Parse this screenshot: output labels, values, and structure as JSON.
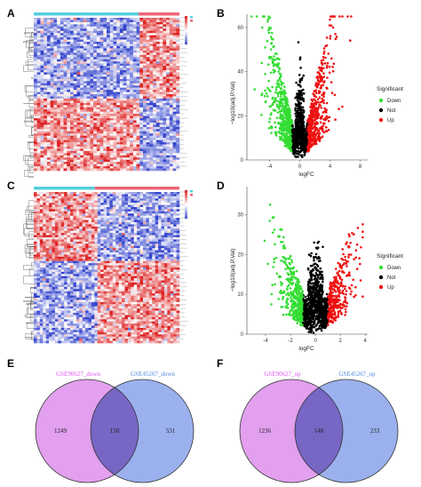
{
  "panels": {
    "A": "A",
    "B": "B",
    "C": "C",
    "D": "D",
    "E": "E",
    "F": "F"
  },
  "colors": {
    "down": "#33dd33",
    "not": "#000000",
    "up": "#ee1111",
    "heat_low": "#3344cc",
    "heat_mid": "#ffffff",
    "heat_high": "#dd2222",
    "venn_left": "#e2a0ee",
    "venn_right": "#9bb1ee",
    "venn_overlap": "#7766c4",
    "label_left": "#dd55ee",
    "label_right": "#5588dd",
    "group_bar_1": "#55cfe0",
    "group_bar_2": "#ee6677"
  },
  "chart_data": [
    {
      "id": "B",
      "type": "scatter",
      "xlabel": "logFC",
      "ylabel": "−log10(adj.P.Val)",
      "xticks": [
        -4,
        0,
        4,
        8
      ],
      "yticks": [
        0,
        20,
        40,
        60
      ],
      "xlim": [
        -7,
        9
      ],
      "ylim": [
        0,
        66
      ],
      "legend_title": "Significant",
      "legend": [
        "Down",
        "Not",
        "Up"
      ]
    },
    {
      "id": "D",
      "type": "scatter",
      "xlabel": "logFC",
      "ylabel": "−log10(adj.P.Val)",
      "xticks": [
        -4,
        -2,
        0,
        2,
        4
      ],
      "yticks": [
        0,
        10,
        20,
        30
      ],
      "xlim": [
        -5.5,
        4.2
      ],
      "ylim": [
        0,
        37
      ],
      "legend_title": "Significant",
      "legend": [
        "Down",
        "Not",
        "Up"
      ]
    },
    {
      "id": "E",
      "type": "venn",
      "sets": [
        "GSE90627_down",
        "GSE45267_down"
      ],
      "values": [
        1249,
        150,
        531
      ]
    },
    {
      "id": "F",
      "type": "venn",
      "sets": [
        "GSE90627_up",
        "GSE45267_up"
      ],
      "values": [
        1236,
        148,
        233
      ]
    }
  ]
}
